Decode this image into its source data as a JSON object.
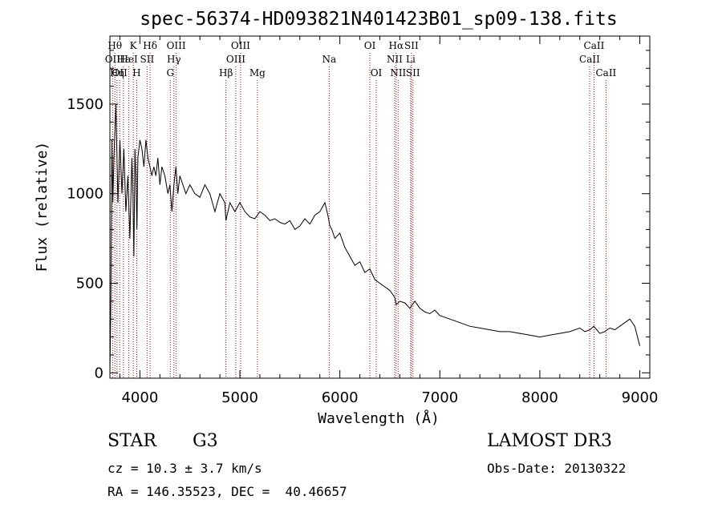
{
  "chart_data": {
    "type": "line",
    "title": "spec-56374-HD093821N401423B01_sp09-138.fits",
    "xlabel": "Wavelength (Å)",
    "ylabel": "Flux (relative)",
    "xlim": [
      3700,
      9100
    ],
    "ylim": [
      -30,
      1880
    ],
    "x_ticks": [
      4000,
      5000,
      6000,
      7000,
      8000,
      9000
    ],
    "y_ticks": [
      0,
      500,
      1000,
      1500
    ],
    "grid": false,
    "series": [
      {
        "x": [
          3700,
          3710,
          3720,
          3730,
          3740,
          3760,
          3780,
          3800,
          3820,
          3840,
          3860,
          3880,
          3900,
          3920,
          3930,
          3940,
          3950,
          3960,
          3970,
          3980,
          4000,
          4020,
          4040,
          4060,
          4080,
          4100,
          4120,
          4140,
          4160,
          4180,
          4200,
          4220,
          4250,
          4280,
          4300,
          4320,
          4340,
          4360,
          4380,
          4400,
          4430,
          4460,
          4500,
          4550,
          4600,
          4650,
          4700,
          4750,
          4800,
          4850,
          4860,
          4900,
          4950,
          5000,
          5050,
          5100,
          5150,
          5200,
          5250,
          5300,
          5350,
          5400,
          5450,
          5500,
          5550,
          5600,
          5650,
          5700,
          5750,
          5800,
          5850,
          5880,
          5900,
          5920,
          5950,
          6000,
          6050,
          6100,
          6150,
          6200,
          6250,
          6300,
          6350,
          6400,
          6450,
          6500,
          6550,
          6563,
          6600,
          6650,
          6700,
          6750,
          6800,
          6850,
          6900,
          6950,
          7000,
          7100,
          7200,
          7300,
          7400,
          7500,
          7600,
          7700,
          7800,
          7900,
          8000,
          8100,
          8200,
          8300,
          8400,
          8450,
          8500,
          8540,
          8600,
          8650,
          8700,
          8750,
          8800,
          8850,
          8900,
          8950,
          9000
        ],
        "values": [
          0,
          400,
          1300,
          950,
          1200,
          1500,
          950,
          1300,
          1000,
          1250,
          900,
          1100,
          750,
          1200,
          1000,
          650,
          1250,
          1100,
          800,
          1200,
          1300,
          1250,
          1150,
          1300,
          1200,
          1150,
          1100,
          1150,
          1100,
          1200,
          1050,
          1150,
          1100,
          1000,
          1050,
          900,
          1050,
          1150,
          1000,
          1100,
          1050,
          1000,
          1050,
          1000,
          980,
          1050,
          1000,
          900,
          1000,
          950,
          850,
          950,
          900,
          950,
          900,
          870,
          860,
          900,
          880,
          850,
          860,
          840,
          830,
          850,
          800,
          820,
          860,
          830,
          880,
          900,
          950,
          880,
          820,
          800,
          750,
          780,
          700,
          650,
          600,
          620,
          560,
          580,
          520,
          500,
          480,
          460,
          420,
          380,
          400,
          390,
          360,
          400,
          360,
          340,
          330,
          350,
          320,
          300,
          280,
          260,
          250,
          240,
          230,
          230,
          220,
          210,
          200,
          210,
          220,
          230,
          250,
          230,
          240,
          260,
          220,
          230,
          250,
          240,
          260,
          280,
          300,
          260,
          150
        ]
      }
    ],
    "line_markers": [
      {
        "wavelength": 3727,
        "label": "OII",
        "row": 1
      },
      {
        "wavelength": 3750,
        "label": "Hθ",
        "row": 0
      },
      {
        "wavelength": 3771,
        "label": "Hη",
        "row": 2
      },
      {
        "wavelength": 3798,
        "label": "OII",
        "row": 2
      },
      {
        "wavelength": 3835,
        "label": "Hε",
        "row": 1
      },
      {
        "wavelength": 3889,
        "label": "HeI",
        "row": 1
      },
      {
        "wavelength": 3934,
        "label": "K",
        "row": 0
      },
      {
        "wavelength": 3968,
        "label": "H",
        "row": 2
      },
      {
        "wavelength": 4072,
        "label": "SII",
        "row": 1
      },
      {
        "wavelength": 4102,
        "label": "Hδ",
        "row": 0
      },
      {
        "wavelength": 4304,
        "label": "G",
        "row": 2
      },
      {
        "wavelength": 4340,
        "label": "Hγ",
        "row": 1
      },
      {
        "wavelength": 4363,
        "label": "OIII",
        "row": 0
      },
      {
        "wavelength": 4861,
        "label": "Hβ",
        "row": 2
      },
      {
        "wavelength": 4959,
        "label": "OIII",
        "row": 1
      },
      {
        "wavelength": 5007,
        "label": "OIII",
        "row": 0
      },
      {
        "wavelength": 5175,
        "label": "Mg",
        "row": 2
      },
      {
        "wavelength": 5893,
        "label": "Na",
        "row": 1
      },
      {
        "wavelength": 6300,
        "label": "OI",
        "row": 0
      },
      {
        "wavelength": 6364,
        "label": "OI",
        "row": 2
      },
      {
        "wavelength": 6548,
        "label": "NII",
        "row": 1
      },
      {
        "wavelength": 6563,
        "label": "Hα",
        "row": 0
      },
      {
        "wavelength": 6583,
        "label": "NII",
        "row": 2
      },
      {
        "wavelength": 6708,
        "label": "Li",
        "row": 1
      },
      {
        "wavelength": 6716,
        "label": "SII",
        "row": 0
      },
      {
        "wavelength": 6731,
        "label": "SII",
        "row": 2
      },
      {
        "wavelength": 8498,
        "label": "CaII",
        "row": 1
      },
      {
        "wavelength": 8542,
        "label": "CaII",
        "row": 0
      },
      {
        "wavelength": 8662,
        "label": "CaII",
        "row": 2
      }
    ],
    "line_color": "#000000",
    "marker_color": "#c00000"
  },
  "info": {
    "class": "STAR",
    "subclass": "G3",
    "cz": "cz = 10.3 ± 3.7 km/s",
    "coords": "RA = 146.35523, DEC =  40.46657",
    "survey": "LAMOST DR3",
    "obs_date": "Obs-Date: 20130322"
  }
}
